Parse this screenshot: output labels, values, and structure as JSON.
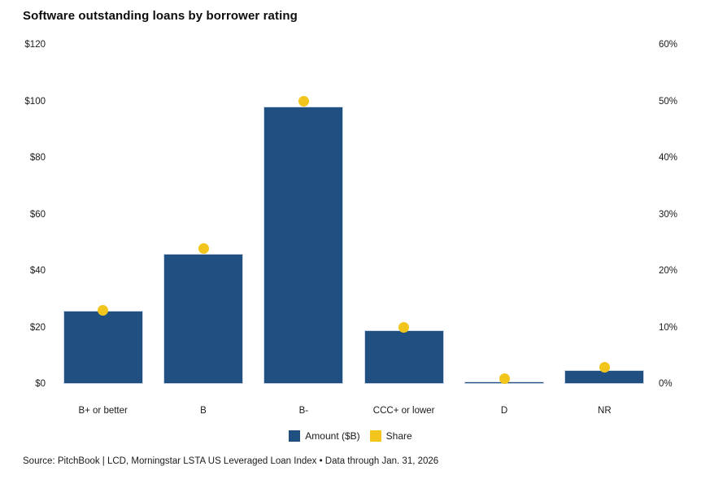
{
  "title": "Software outstanding loans by borrower rating",
  "source": "Source: PitchBook | LCD, Morningstar LSTA US Leveraged Loan Index • Data through Jan. 31, 2026",
  "colors": {
    "bar": "#1f5081",
    "bar_border": "#ccd7e1",
    "dot": "#f2c51d",
    "text": "#1a1a1a",
    "background": "#ffffff"
  },
  "legend": {
    "items": [
      {
        "label": "Amount ($B)",
        "color": "#1f5081",
        "shape": "square"
      },
      {
        "label": "Share",
        "color": "#f2c51d",
        "shape": "square"
      }
    ]
  },
  "chart_data": {
    "type": "bar",
    "title": "Software outstanding loans by borrower rating",
    "categories": [
      "B+ or better",
      "B",
      "B-",
      "CCC+ or lower",
      "D",
      "NR"
    ],
    "series": [
      {
        "name": "Amount ($B)",
        "type": "bar",
        "axis": "left",
        "values": [
          26,
          46,
          98,
          19,
          1,
          5
        ]
      },
      {
        "name": "Share",
        "type": "scatter",
        "axis": "right",
        "values": [
          13,
          24,
          50,
          10,
          1,
          3
        ]
      }
    ],
    "left_axis": {
      "ticks": [
        "$0",
        "$20",
        "$40",
        "$60",
        "$80",
        "$100",
        "$120"
      ],
      "min": 0,
      "max": 120
    },
    "right_axis": {
      "ticks": [
        "0%",
        "10%",
        "20%",
        "30%",
        "40%",
        "50%",
        "60%"
      ],
      "min": 0,
      "max": 60
    },
    "grid": false,
    "legend_position": "bottom"
  }
}
